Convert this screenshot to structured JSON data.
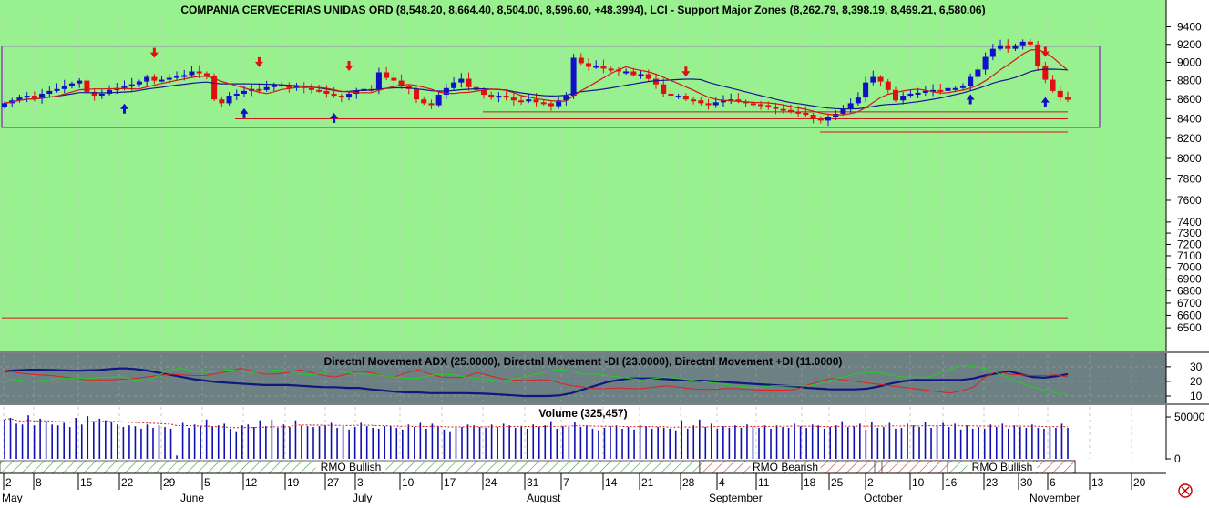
{
  "title": "COMPANIA CERVECERIAS UNIDAS ORD (8,548.20, 8,664.40, 8,504.00, 8,596.60, +48.3994), LCI - Support Major Zones (8,262.79, 8,398.19, 8,469.21, 6,580.06)",
  "colors": {
    "plot_bg": "#99f08f",
    "adx_bg": "#6d8083",
    "bull_candle": "#1010c8",
    "bear_candle": "#e01010",
    "ma_fast": "#d01818",
    "ma_slow": "#181890",
    "support": "#d01818",
    "zone_box": "#8000c0",
    "adx_line": "#101880",
    "minus_di": "#e02020",
    "plus_di": "#20d020",
    "volume_bar": "#1010b0",
    "volume_avg": "#d01818"
  },
  "chart_data": [
    {
      "type": "candlestick",
      "title": "COMPANIA CERVECERIAS UNIDAS ORD (8,548.20, 8,664.40, 8,504.00, 8,596.60, +48.3994), LCI - Support Major Zones (8,262.79, 8,398.19, 8,469.21, 6,580.06)",
      "y_scale": "log",
      "ylim": [
        6400,
        9500
      ],
      "y_ticks": [
        9400,
        9200,
        9000,
        8800,
        8600,
        8400,
        8200,
        8000,
        7800,
        7600,
        7400,
        7300,
        7200,
        7100,
        7000,
        6900,
        6800,
        6700,
        6600,
        6500
      ],
      "x_ticks": [
        "2",
        "8",
        "15",
        "22",
        "29",
        "5",
        "12",
        "19",
        "27",
        "3",
        "10",
        "17",
        "24",
        "31",
        "7",
        "14",
        "21",
        "28",
        "4",
        "11",
        "18",
        "25",
        "2",
        "10",
        "16",
        "23",
        "30",
        "6",
        "13",
        "20"
      ],
      "months": [
        "May",
        "June",
        "July",
        "August",
        "September",
        "October",
        "November"
      ],
      "close_start": 8520,
      "closes": [
        8560,
        8590,
        8620,
        8640,
        8610,
        8660,
        8690,
        8710,
        8740,
        8770,
        8800,
        8680,
        8640,
        8660,
        8700,
        8720,
        8740,
        8760,
        8790,
        8840,
        8800,
        8810,
        8830,
        8850,
        8860,
        8900,
        8880,
        8850,
        8600,
        8560,
        8640,
        8660,
        8690,
        8710,
        8700,
        8730,
        8760,
        8750,
        8720,
        8740,
        8720,
        8700,
        8690,
        8660,
        8640,
        8620,
        8660,
        8690,
        8710,
        8700,
        8890,
        8830,
        8800,
        8740,
        8710,
        8600,
        8560,
        8540,
        8650,
        8720,
        8780,
        8820,
        8730,
        8700,
        8650,
        8620,
        8640,
        8620,
        8590,
        8580,
        8600,
        8570,
        8560,
        8530,
        8590,
        8640,
        9050,
        8990,
        8950,
        8960,
        8930,
        8920,
        8900,
        8900,
        8860,
        8870,
        8820,
        8760,
        8660,
        8640,
        8640,
        8600,
        8590,
        8560,
        8540,
        8570,
        8590,
        8600,
        8580,
        8560,
        8550,
        8540,
        8520,
        8500,
        8490,
        8470,
        8460,
        8440,
        8400,
        8380,
        8420,
        8450,
        8500,
        8560,
        8620,
        8780,
        8840,
        8790,
        8700,
        8590,
        8640,
        8660,
        8670,
        8690,
        8700,
        8690,
        8720,
        8720,
        8740,
        8840,
        8920,
        9060,
        9150,
        9190,
        9150,
        9190,
        9230,
        9200,
        8960,
        8810,
        8690,
        8620,
        8596.6
      ],
      "support_levels": [
        8262.79,
        8398.19,
        8469.21,
        6580.06
      ],
      "zone_box": [
        8310,
        9180
      ],
      "sell_arrow_bars": [
        20,
        34,
        46,
        91,
        147
      ],
      "buy_arrow_bars": [
        16,
        32,
        44,
        129,
        180
      ]
    },
    {
      "type": "line",
      "title": "Directnl Movement ADX (25.0000), Directnl Movement -DI (23.0000), Directnl Movement +DI (11.0000)",
      "ylim": [
        5,
        38
      ],
      "y_ticks": [
        30,
        20,
        10
      ],
      "series": [
        {
          "name": "ADX",
          "values": [
            27,
            27.5,
            28,
            28,
            27.8,
            27.5,
            27.3,
            27.5,
            27.8,
            28.5,
            29,
            28.5,
            27.5,
            26,
            24.5,
            23,
            21.5,
            20.5,
            19.5,
            19,
            18.5,
            18,
            17.5,
            17.5,
            17.5,
            17,
            16.5,
            16,
            16,
            15.5,
            15.5,
            14.5,
            13.8,
            13,
            12.5,
            12.5,
            12,
            12,
            12,
            12,
            11.8,
            11.5,
            11,
            10.5,
            10,
            10,
            10,
            10.5,
            12,
            14.5,
            17,
            19.5,
            21,
            22,
            22,
            22,
            21.5,
            21,
            20.5,
            20.5,
            20,
            19.5,
            19,
            18.5,
            18,
            17.5,
            17,
            16.5,
            15.5,
            15,
            14.5,
            14.5,
            14.5,
            15,
            16.5,
            18.5,
            20,
            21,
            21,
            21,
            21,
            21,
            22,
            24,
            25.5,
            27,
            25,
            23,
            22.5,
            23.5,
            25
          ]
        },
        {
          "name": "-DI",
          "values": [
            28,
            26,
            25,
            24.5,
            24,
            23,
            22,
            21,
            21,
            21,
            21.5,
            22,
            23,
            24,
            25,
            24.5,
            24,
            24,
            25.5,
            27,
            29,
            27,
            25,
            25,
            26,
            28,
            26,
            24,
            23,
            25,
            27,
            26,
            24,
            23,
            26,
            28,
            25,
            23,
            22.5,
            23,
            26,
            24,
            22,
            21,
            20.5,
            21,
            21,
            19,
            17,
            16,
            15,
            15,
            15.5,
            15,
            15,
            16,
            17,
            16,
            15,
            14.5,
            14.5,
            15,
            15,
            14.5,
            14,
            14,
            14,
            14.5,
            17.5,
            20,
            22,
            21,
            20,
            19,
            18,
            17,
            16,
            15,
            14,
            13,
            12,
            13.5,
            16,
            23,
            27,
            25,
            24.5,
            24,
            24,
            24.5,
            23
          ]
        },
        {
          "name": "+DI",
          "values": [
            22,
            21,
            20,
            20.5,
            21.5,
            22,
            22,
            22,
            22.5,
            23,
            23,
            21,
            20,
            24,
            28,
            29,
            27,
            26,
            27,
            28,
            27,
            26,
            27,
            28,
            27,
            25,
            24.5,
            26,
            27,
            26,
            25,
            25,
            24,
            23,
            22,
            22,
            24,
            25,
            24.5,
            23,
            22,
            21,
            20,
            21.5,
            23,
            25,
            27,
            28,
            27,
            25,
            25,
            24,
            23,
            22,
            21,
            22,
            23,
            22,
            21,
            20,
            19,
            18,
            17,
            16,
            16,
            17,
            17,
            17,
            17,
            18.5,
            21,
            23,
            25,
            26,
            26,
            24.5,
            23,
            23,
            22.5,
            25,
            28,
            31,
            30,
            29,
            26,
            22,
            19,
            16,
            14,
            12,
            11
          ]
        }
      ]
    },
    {
      "type": "bar",
      "title": "Volume (325,457)",
      "y_ticks": [
        50000,
        0
      ],
      "ylim": [
        0,
        62000
      ],
      "values": [
        47000,
        49000,
        42000,
        41000,
        52000,
        40000,
        48000,
        45000,
        41000,
        40000,
        43000,
        38000,
        49000,
        41000,
        51000,
        45000,
        48000,
        46000,
        44000,
        41000,
        38000,
        40000,
        39000,
        36000,
        41000,
        37000,
        40000,
        38000,
        36000,
        4000,
        43000,
        37000,
        41000,
        39000,
        47000,
        38000,
        40000,
        42000,
        36000,
        33000,
        40000,
        41000,
        38000,
        46000,
        39000,
        47000,
        37000,
        41000,
        38000,
        46000,
        40000,
        39000,
        38000,
        39000,
        40000,
        43000,
        37000,
        39000,
        35000,
        38000,
        43000,
        39000,
        37000,
        36000,
        39000,
        39000,
        37000,
        35000,
        41000,
        38000,
        43000,
        36000,
        42000,
        39000,
        35000,
        33000,
        39000,
        38000,
        41000,
        40000,
        38000,
        37000,
        41000,
        38000,
        42000,
        40000,
        37000,
        39000,
        36000,
        41000,
        38000,
        40000,
        45000,
        36000,
        39000,
        38000,
        44000,
        38000,
        40000,
        36000,
        34000,
        37000,
        39000,
        40000,
        36000,
        38000,
        35000,
        40000,
        39000,
        36000,
        38000,
        37000,
        36000,
        34000,
        46000,
        36000,
        40000,
        47000,
        38000,
        42000,
        36000,
        39000,
        37000,
        40000,
        37000,
        41000,
        38000,
        37000,
        40000,
        36000,
        40000,
        38000,
        37000,
        42000,
        39000,
        37000,
        41000,
        40000,
        36000,
        38000,
        40000,
        45000,
        38000,
        39000,
        42000,
        35000,
        44000,
        37000,
        38000,
        43000,
        36000,
        37000,
        42000,
        40000,
        38000,
        44000,
        37000,
        40000,
        43000,
        38000,
        42000,
        35000,
        40000,
        36000,
        38000,
        36000,
        41000,
        38000,
        42000,
        36000,
        40000,
        38000,
        37000,
        41000,
        37000,
        36000,
        38000,
        37000,
        42000,
        37000
      ]
    },
    {
      "type": "table",
      "title": "RMO",
      "segments": [
        {
          "label": "RMO Bullish",
          "start": 0,
          "end": 768
        },
        {
          "label": "RMO Bearish",
          "start": 768,
          "end": 1180
        },
        {
          "label": "RMO Bullish",
          "start": 1040,
          "end": 1180
        }
      ]
    }
  ]
}
